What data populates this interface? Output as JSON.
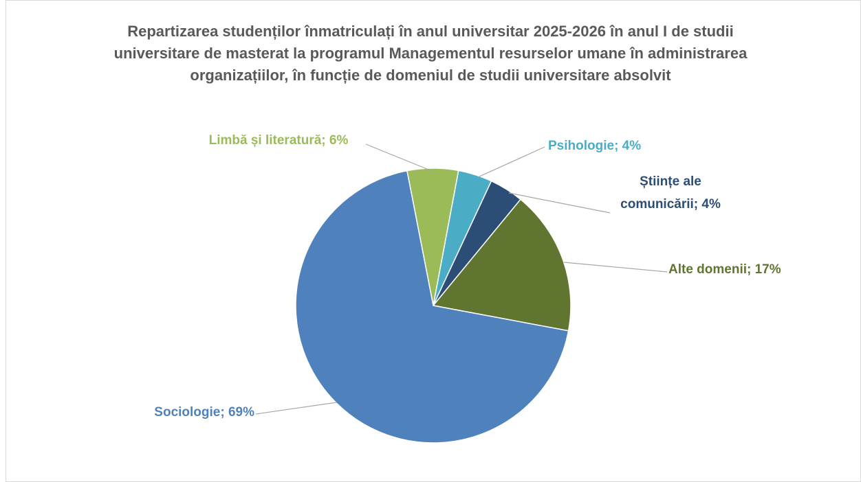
{
  "chart_data": {
    "type": "pie",
    "title": "Repartizarea studenților înmatriculați în anul universitar 2025-2026 în anul I de studii universitare de masterat la programul Managementul resurselor umane în administrarea organizațiilor, în funcție de domeniul de studii universitare absolvit",
    "values": [
      6,
      4,
      4,
      17,
      69
    ],
    "value_labels": [
      "Limbă și literatură; 6%",
      "Psihologie; 4%",
      "Științe ale comunicării; 4%",
      "Alte domenii; 17%",
      "Sociologie; 69%"
    ],
    "colors": [
      "#9bbb59",
      "#4bacc6",
      "#2c4d75",
      "#5f7530",
      "#4f81bd"
    ]
  }
}
